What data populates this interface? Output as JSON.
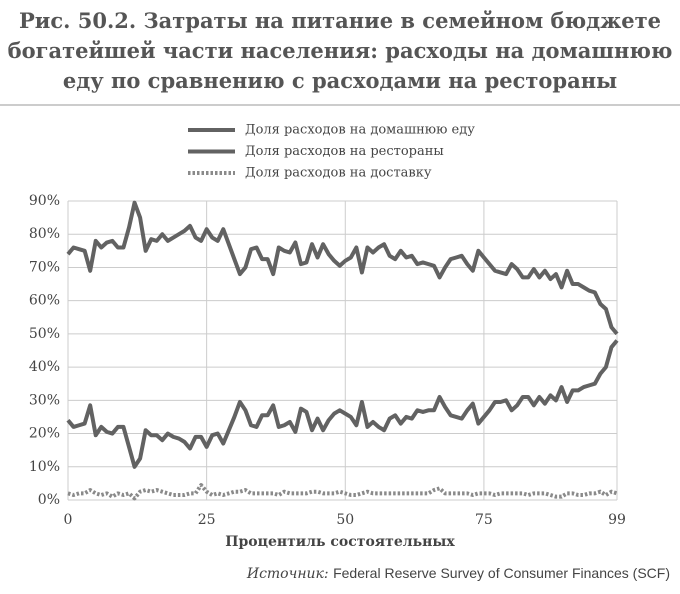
{
  "chart_data": {
    "type": "line",
    "title_lines": [
      "Рис. 50.2. Затраты на питание в семейном бюджете",
      "богатейшей части населения: расходы на домашнюю",
      "еду по сравнению с расходами на рестораны"
    ],
    "x_label": "Процентиль состоятельных",
    "source_label": "Источник:",
    "source_text": "Federal Reserve Survey of Consumer Finances (SCF)",
    "x": [
      0,
      1,
      2,
      3,
      4,
      5,
      6,
      7,
      8,
      9,
      10,
      11,
      12,
      13,
      14,
      15,
      16,
      17,
      18,
      19,
      20,
      21,
      22,
      23,
      24,
      25,
      26,
      27,
      28,
      29,
      30,
      31,
      32,
      33,
      34,
      35,
      36,
      37,
      38,
      39,
      40,
      41,
      42,
      43,
      44,
      45,
      46,
      47,
      48,
      49,
      50,
      51,
      52,
      53,
      54,
      55,
      56,
      57,
      58,
      59,
      60,
      61,
      62,
      63,
      64,
      65,
      66,
      67,
      68,
      69,
      70,
      71,
      72,
      73,
      74,
      75,
      76,
      77,
      78,
      79,
      80,
      81,
      82,
      83,
      84,
      85,
      86,
      87,
      88,
      89,
      90,
      91,
      92,
      93,
      94,
      95,
      96,
      97,
      98,
      99
    ],
    "series": [
      {
        "name": "Доля расходов на домашнюю еду",
        "color": "#626262",
        "style": "solid",
        "values": [
          74,
          76,
          75.5,
          75,
          69,
          78,
          76,
          77.5,
          78,
          76,
          76,
          82,
          89.5,
          85,
          75,
          78.5,
          78,
          80,
          78,
          79,
          80,
          81,
          82.5,
          79,
          78,
          81.5,
          79,
          78,
          81.5,
          77,
          72.5,
          68,
          70,
          75.5,
          76,
          72.5,
          72.5,
          68,
          76,
          75,
          74.5,
          77.5,
          71,
          71.5,
          77,
          73,
          77,
          74,
          72,
          70.5,
          72,
          73,
          76,
          68.5,
          76,
          74.5,
          76,
          77,
          73.5,
          72.5,
          75,
          73,
          73.5,
          71,
          71.5,
          71,
          70.5,
          67,
          70,
          72.5,
          73,
          73.5,
          71,
          69,
          75,
          73,
          71,
          69,
          68.5,
          68,
          71,
          69.5,
          67,
          67,
          69.5,
          67,
          69,
          66.5,
          68,
          64,
          69,
          65,
          65,
          64,
          63,
          62.5,
          59,
          57.5,
          52,
          50
        ]
      },
      {
        "name": "Доля расходов на рестораны",
        "color": "#626262",
        "style": "solid",
        "values": [
          24,
          22,
          22.5,
          23,
          28.5,
          19.5,
          22,
          20.5,
          20,
          22,
          22,
          16,
          10,
          12.5,
          21,
          19.5,
          19.5,
          18,
          20,
          19,
          18.5,
          17.5,
          15.5,
          19,
          19,
          16,
          19.5,
          20,
          17,
          21,
          25,
          29.5,
          27,
          22.5,
          22,
          25.5,
          25.5,
          28.5,
          22,
          22.5,
          23.5,
          20.5,
          27.5,
          26.5,
          21,
          24.5,
          21,
          24,
          26,
          27,
          26,
          25,
          22.5,
          29.5,
          22,
          23.5,
          22,
          21,
          24.5,
          25.5,
          23,
          25,
          24.5,
          27,
          26.5,
          27,
          27,
          31,
          28,
          25.5,
          25,
          24.5,
          27,
          29,
          23,
          25,
          27,
          29.5,
          29.5,
          30,
          27,
          28.5,
          31,
          31,
          28.5,
          31,
          29,
          31.5,
          30,
          34,
          29.5,
          33,
          33,
          34,
          34.5,
          35,
          38,
          40,
          46,
          48
        ]
      },
      {
        "name": "Доля расходов на доставку",
        "color": "#8a8a8a",
        "style": "dotted",
        "values": [
          2,
          1.5,
          2,
          2,
          3,
          2,
          1.5,
          2,
          1,
          2,
          1.5,
          2,
          0.5,
          2.5,
          3,
          2.5,
          3,
          2.5,
          2,
          1.5,
          1.5,
          1.5,
          2,
          2,
          4.5,
          2.5,
          1.5,
          2,
          1.5,
          2,
          2.5,
          2.5,
          3,
          2,
          2,
          2,
          2,
          2,
          1.5,
          2.5,
          2,
          2,
          2,
          2,
          2.5,
          2.5,
          2,
          2,
          2,
          2.5,
          2,
          1.5,
          1.5,
          2,
          2.5,
          2,
          2,
          2,
          2,
          2,
          2,
          2,
          2,
          2,
          2,
          2,
          3,
          3.5,
          2,
          2,
          2,
          2,
          2,
          1.5,
          2,
          2,
          2,
          1.5,
          2,
          2,
          2,
          2,
          2,
          1.5,
          2,
          2,
          2,
          1.5,
          1,
          1,
          2,
          2,
          1.5,
          1.5,
          2,
          2,
          2.5,
          1.5,
          2.5,
          2
        ]
      }
    ],
    "xlim": [
      0,
      99
    ],
    "xticks": [
      0,
      25,
      50,
      75,
      99
    ],
    "ylim": [
      0,
      90
    ],
    "yticks": [
      {
        "value": 0,
        "label": "0%"
      },
      {
        "value": 10,
        "label": "10%"
      },
      {
        "value": 20,
        "label": "20%"
      },
      {
        "value": 30,
        "label": "30%"
      },
      {
        "value": 40,
        "label": "40%"
      },
      {
        "value": 50,
        "label": "50%"
      },
      {
        "value": 60,
        "label": "60%"
      },
      {
        "value": 70,
        "label": "70%"
      },
      {
        "value": 80,
        "label": "80%"
      },
      {
        "value": 90,
        "label": "90%"
      }
    ],
    "grid": true
  }
}
